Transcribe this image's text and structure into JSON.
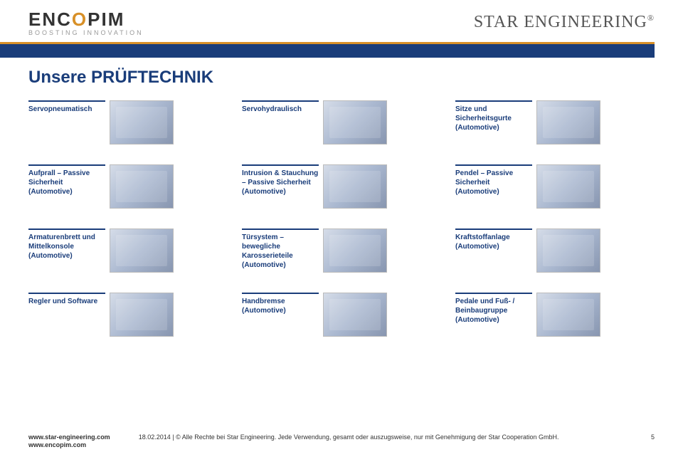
{
  "header": {
    "logo_left_main_pre": "ENC",
    "logo_left_main_dash": "O",
    "logo_left_main_post": "PIM",
    "logo_left_sub": "BOOSTING INNOVATION",
    "logo_right_text": "STAR ENGINEERING",
    "logo_right_reg": "®"
  },
  "title": "Unsere PRÜFTECHNIK",
  "rows": [
    [
      {
        "label": "Servopneumatisch"
      },
      {
        "label": "Servohydraulisch"
      },
      {
        "label": "Sitze und Sicherheitsgurte (Automotive)"
      }
    ],
    [
      {
        "label": "Aufprall – Passive Sicherheit (Automotive)"
      },
      {
        "label": "Intrusion & Stauchung – Passive Sicherheit (Automotive)"
      },
      {
        "label": "Pendel – Passive Sicherheit (Automotive)"
      }
    ],
    [
      {
        "label": "Armaturenbrett und Mittelkonsole (Automotive)"
      },
      {
        "label": "Türsystem – bewegliche Karosserieteile (Automotive)"
      },
      {
        "label": "Kraftstoffanlage (Automotive)"
      }
    ],
    [
      {
        "label": "Regler und Software"
      },
      {
        "label": "Handbremse (Automotive)"
      },
      {
        "label": "Pedale und Fuß- / Beinbaugruppe (Automotive)"
      }
    ]
  ],
  "footer": {
    "url1": "www.star-engineering.com",
    "url2": "www.encopim.com",
    "center": "18.02.2014 | © Alle Rechte bei Star Engineering. Jede Verwendung, gesamt oder auszugsweise, nur mit Genehmigung der Star Cooperation GmbH.",
    "page": "5"
  },
  "colors": {
    "brand_blue": "#1a3d7a",
    "accent_orange": "#d89028"
  }
}
